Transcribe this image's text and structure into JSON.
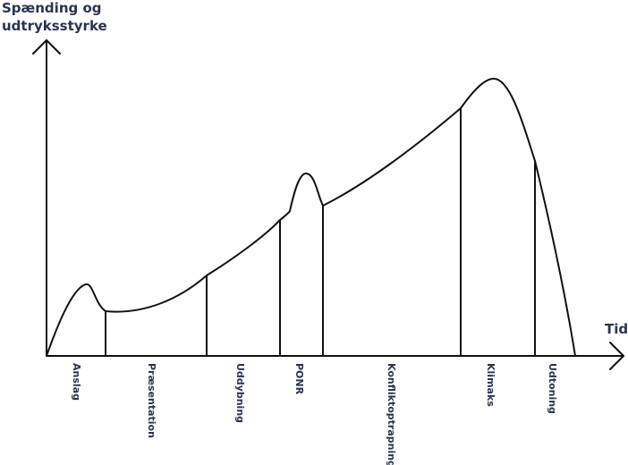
{
  "y_axis_title_line1": "Spænding og",
  "y_axis_title_line2": "udtryksstyrke",
  "x_axis_title": "Tid",
  "stages": [
    "Anslag",
    "Præsentation",
    "Uddybning",
    "PONR",
    "Konfliktoptrapning",
    "Klimaks",
    "Udtoning"
  ],
  "colors": {
    "curve": "#111111",
    "labels": "#2b3350"
  }
}
